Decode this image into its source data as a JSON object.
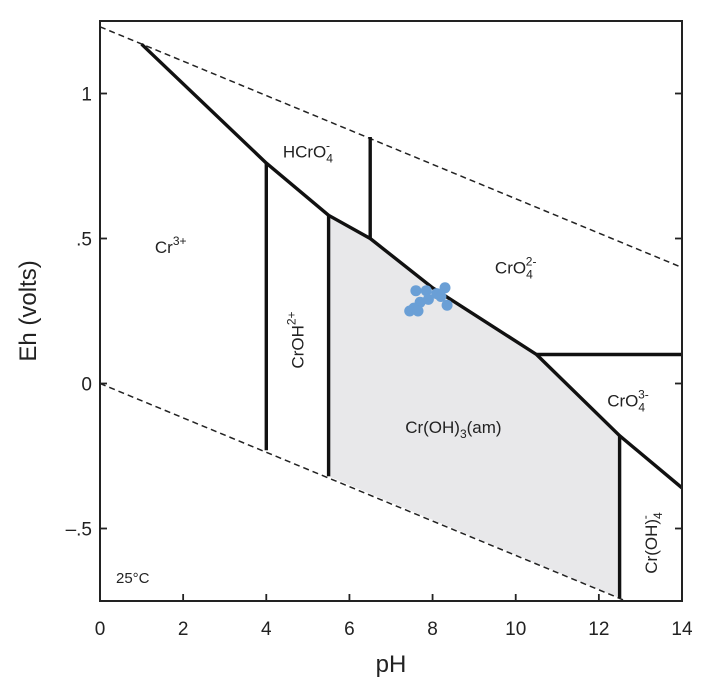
{
  "chart_data": {
    "type": "scatter",
    "title": "",
    "xlabel": "pH",
    "ylabel": "Eh (volts)",
    "xlim": [
      0,
      14
    ],
    "ylim": [
      -0.75,
      1.25
    ],
    "x_ticks": [
      0,
      2,
      4,
      6,
      8,
      10,
      12,
      14
    ],
    "x_tick_labels": [
      "0",
      "2",
      "4",
      "6",
      "8",
      "10",
      "12",
      "14"
    ],
    "y_ticks": [
      -0.5,
      0,
      0.5,
      1
    ],
    "y_tick_labels": [
      "–.5",
      "0",
      ".5",
      "1"
    ],
    "grid": false,
    "annotation": "25°C",
    "water_stability_lines": [
      {
        "x": [
          0,
          14
        ],
        "y": [
          1.23,
          0.4
        ]
      },
      {
        "x": [
          0,
          14
        ],
        "y": [
          0.0,
          -0.83
        ]
      }
    ],
    "boundaries": [
      {
        "x": [
          1.0,
          4.0,
          5.5,
          6.5,
          8.0,
          10.5,
          12.5,
          14.0
        ],
        "y": [
          1.17,
          0.76,
          0.58,
          0.5,
          0.33,
          0.1,
          -0.18,
          -0.36
        ]
      },
      {
        "x": [
          4.0,
          4.0
        ],
        "y": [
          0.76,
          -0.23
        ]
      },
      {
        "x": [
          5.5,
          5.5
        ],
        "y": [
          0.58,
          -0.32
        ]
      },
      {
        "x": [
          6.5,
          6.5
        ],
        "y": [
          0.85,
          0.5
        ]
      },
      {
        "x": [
          10.5,
          14.0
        ],
        "y": [
          0.1,
          0.1
        ]
      },
      {
        "x": [
          12.5,
          12.5
        ],
        "y": [
          -0.18,
          -0.74
        ]
      }
    ],
    "shaded_region": {
      "name": "Cr(OH)3(am)",
      "x": [
        5.5,
        6.5,
        8.0,
        10.5,
        12.5,
        12.5,
        5.5
      ],
      "y": [
        0.58,
        0.5,
        0.33,
        0.1,
        -0.18,
        -0.74,
        -0.32
      ]
    },
    "series": [
      {
        "color": "#6a9fd6",
        "points": [
          {
            "x": 7.6,
            "y": 0.32
          },
          {
            "x": 7.85,
            "y": 0.32
          },
          {
            "x": 8.1,
            "y": 0.31
          },
          {
            "x": 8.3,
            "y": 0.33
          },
          {
            "x": 7.9,
            "y": 0.29
          },
          {
            "x": 8.2,
            "y": 0.3
          },
          {
            "x": 7.7,
            "y": 0.28
          },
          {
            "x": 8.35,
            "y": 0.27
          },
          {
            "x": 7.55,
            "y": 0.26
          },
          {
            "x": 7.45,
            "y": 0.25
          },
          {
            "x": 7.65,
            "y": 0.25
          }
        ]
      }
    ],
    "region_labels": [
      {
        "id": "cr3",
        "base": "Cr",
        "sup": "3+",
        "sub": "",
        "x": 1.7,
        "y": 0.45
      },
      {
        "id": "hcro4",
        "base": "HCrO",
        "sup": "-",
        "sub": "4",
        "x": 5.0,
        "y": 0.78
      },
      {
        "id": "cro4-2",
        "base": "CrO",
        "sup": "2-",
        "sub": "4",
        "x": 10.0,
        "y": 0.38
      },
      {
        "id": "croh2",
        "base": "CrOH",
        "sup": "2+",
        "sub": "",
        "x": 4.9,
        "y": 0.15,
        "rotate": -90
      },
      {
        "id": "croh3",
        "base": "Cr(OH)",
        "sup": "",
        "sub": "3",
        "tail": "(am)",
        "x": 8.5,
        "y": -0.17
      },
      {
        "id": "cro4-3",
        "base": "CrO",
        "sup": "3-",
        "sub": "4",
        "x": 12.7,
        "y": -0.08
      },
      {
        "id": "croh4",
        "base": "Cr(OH)",
        "sup": "-",
        "sub": "4",
        "x": 13.4,
        "y": -0.55,
        "rotate": -90
      }
    ]
  },
  "colors": {
    "axis": "#222222",
    "boundary": "#111111",
    "shade": "#e8e8ea",
    "point": "#6a9fd6"
  }
}
